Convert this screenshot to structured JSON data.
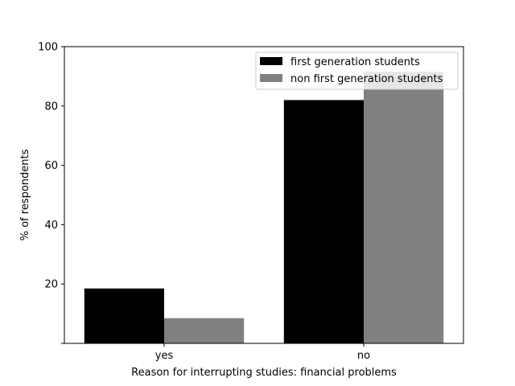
{
  "chart_data": {
    "type": "bar",
    "categories": [
      "yes",
      "no"
    ],
    "series": [
      {
        "name": "first generation students",
        "values": [
          18.5,
          82.0
        ],
        "color": "#000000"
      },
      {
        "name": "non first generation students",
        "values": [
          8.5,
          91.5
        ],
        "color": "#808080"
      }
    ],
    "title": "",
    "xlabel": "Reason for interrupting studies: financial problems",
    "ylabel": "% of respondents",
    "ylim": [
      0,
      100
    ],
    "yticks": [
      20,
      40,
      60,
      80,
      100
    ],
    "grid": false,
    "legend_position": "top-right"
  }
}
